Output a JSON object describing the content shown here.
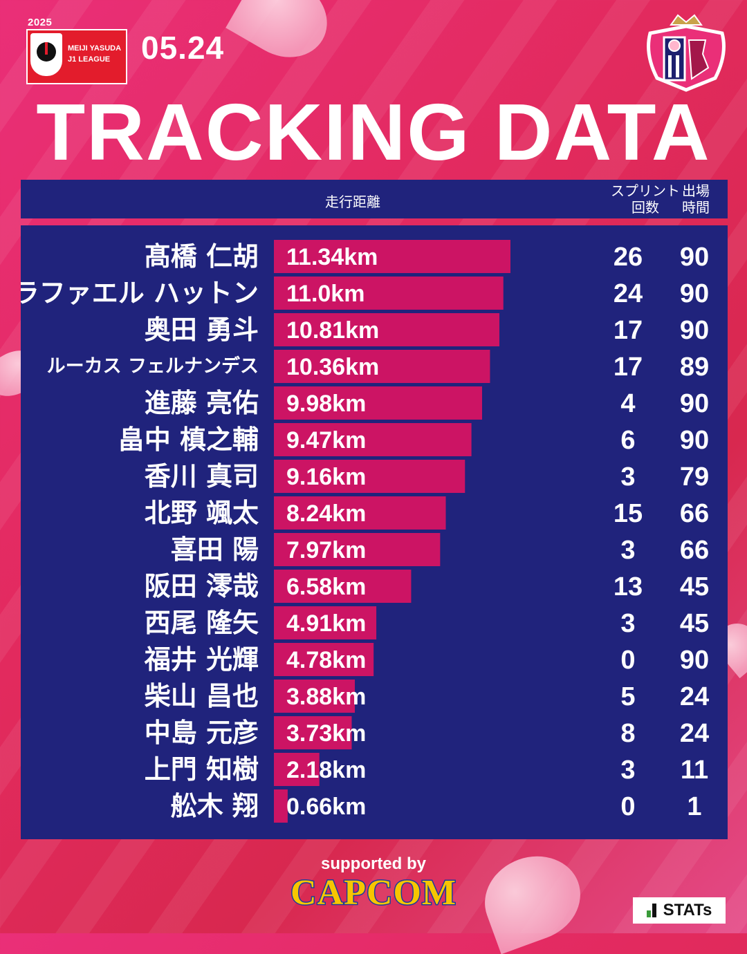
{
  "header": {
    "league_year": "2025",
    "league_line1": "MEIJI YASUDA",
    "league_line2": "J1 LEAGUE",
    "date": "05.24",
    "title": "TRACKING DATA",
    "club_name": "CEREZO OSAKA"
  },
  "columns": {
    "distance": "走行距離",
    "sprints": "スプリント\n回数",
    "minutes": "出場\n時間"
  },
  "chart_data": {
    "type": "bar",
    "orientation": "horizontal",
    "unit": "km",
    "categories": [
      "髙橋 仁胡",
      "ラファエル ハットン",
      "奥田 勇斗",
      "ルーカス フェルナンデス",
      "進藤 亮佑",
      "畠中 槙之輔",
      "香川 真司",
      "北野 颯太",
      "喜田 陽",
      "阪田 澪哉",
      "西尾 隆矢",
      "福井 光輝",
      "柴山 昌也",
      "中島 元彦",
      "上門 知樹",
      "舩木 翔"
    ],
    "values": [
      11.34,
      11.0,
      10.81,
      10.36,
      9.98,
      9.47,
      9.16,
      8.24,
      7.97,
      6.58,
      4.91,
      4.78,
      3.88,
      3.73,
      2.18,
      0.66
    ],
    "labels": [
      "11.34km",
      "11.0km",
      "10.81km",
      "10.36km",
      "9.98km",
      "9.47km",
      "9.16km",
      "8.24km",
      "7.97km",
      "6.58km",
      "4.91km",
      "4.78km",
      "3.88km",
      "3.73km",
      "2.18km",
      "0.66km"
    ],
    "sprints": [
      26,
      24,
      17,
      17,
      4,
      6,
      3,
      15,
      3,
      13,
      3,
      0,
      5,
      8,
      3,
      0
    ],
    "minutes": [
      90,
      90,
      90,
      89,
      90,
      90,
      79,
      66,
      66,
      45,
      45,
      90,
      24,
      24,
      11,
      1
    ],
    "bar_color": "#cc1464",
    "panel_color": "#20237c",
    "xlim": [
      0,
      11.34
    ]
  },
  "footer": {
    "supported_by": "supported by",
    "sponsor": "CAPCOM",
    "stats_brand": "STATs"
  }
}
